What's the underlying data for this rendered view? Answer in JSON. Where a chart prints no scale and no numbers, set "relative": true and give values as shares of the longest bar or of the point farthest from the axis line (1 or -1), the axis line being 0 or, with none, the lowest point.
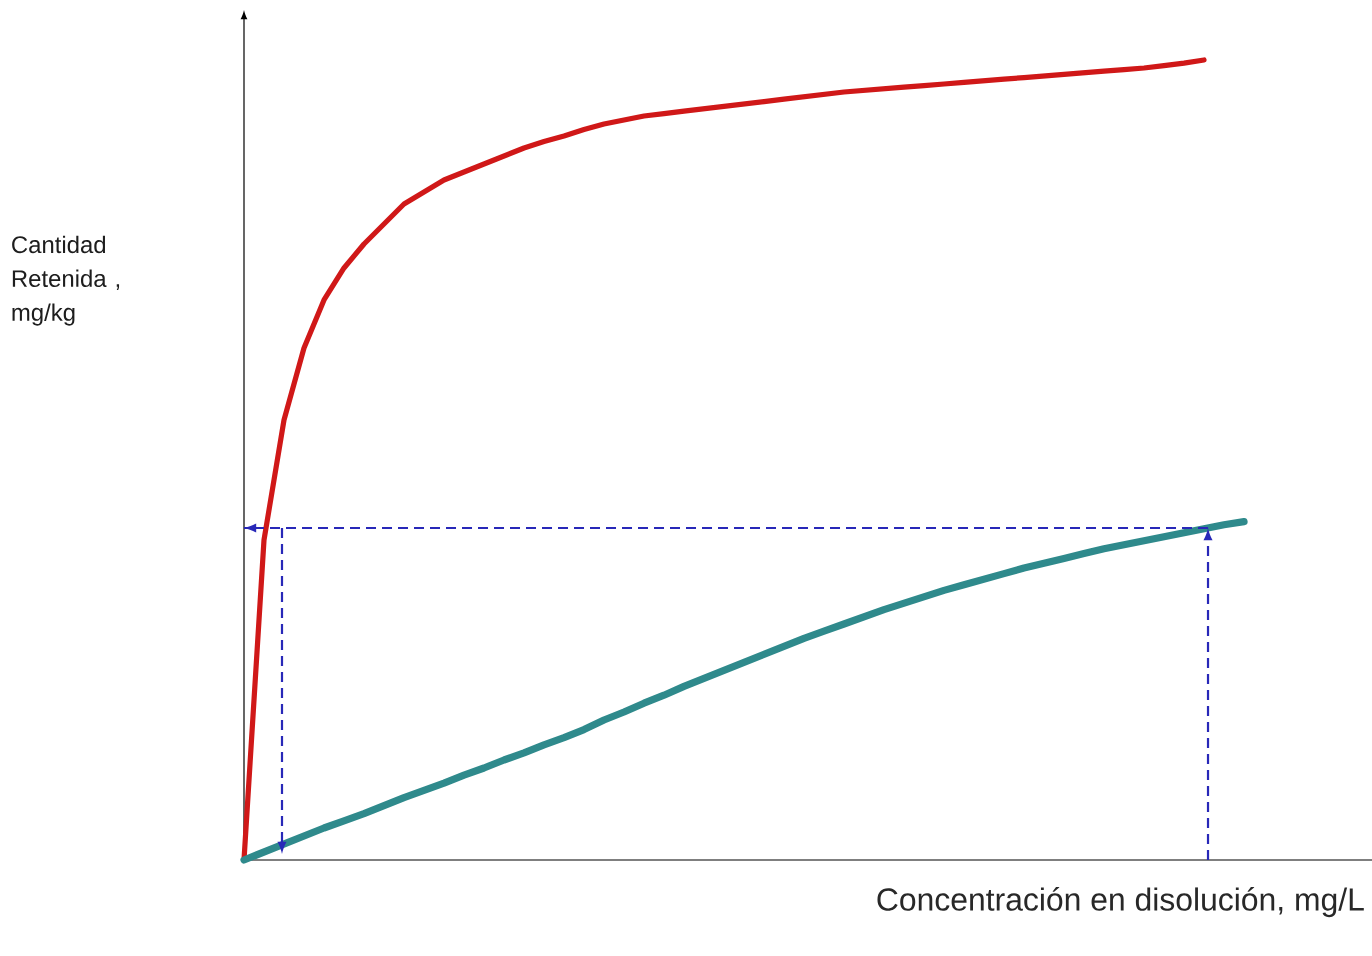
{
  "chart_data": {
    "type": "line",
    "relative": true,
    "xlabel": "Concentración en disolución, mg/L",
    "ylabel": "Cantidad Retenida , mg/kg",
    "categories": [
      null,
      null,
      null,
      null,
      null,
      null,
      null,
      null,
      null,
      null,
      null,
      null,
      null,
      null,
      null,
      null,
      null,
      null,
      null,
      null,
      null,
      null,
      null,
      null,
      null,
      null,
      null,
      null,
      null,
      null,
      null,
      null,
      null,
      null,
      null,
      null,
      null,
      null,
      null,
      null,
      null,
      null,
      null,
      null,
      null,
      null,
      null,
      null,
      null,
      null,
      null
    ],
    "series": [
      {
        "color": "#d01818",
        "values": [
          0,
          0.4,
          0.55,
          0.64,
          0.7,
          0.74,
          0.77,
          0.795,
          0.82,
          0.835,
          0.85,
          0.86,
          0.87,
          0.88,
          0.89,
          0.898,
          0.905,
          0.913,
          0.92,
          0.925,
          0.93,
          0.933,
          0.936,
          0.939,
          0.942,
          0.945,
          0.948,
          0.951,
          0.954,
          0.957,
          0.96,
          0.962,
          0.964,
          0.966,
          0.968,
          0.97,
          0.972,
          0.974,
          0.976,
          0.978,
          0.98,
          0.982,
          0.984,
          0.986,
          0.988,
          0.99,
          0.993,
          0.996,
          1.0,
          null,
          null
        ]
      },
      {
        "color": "#2f8a8c",
        "values": [
          0,
          0.01,
          0.02,
          0.03,
          0.04,
          0.049,
          0.058,
          0.068,
          0.078,
          0.087,
          0.096,
          0.106,
          0.115,
          0.125,
          0.134,
          0.144,
          0.153,
          0.163,
          0.175,
          0.185,
          0.196,
          0.206,
          0.217,
          0.227,
          0.237,
          0.247,
          0.257,
          0.267,
          0.277,
          0.286,
          0.295,
          0.304,
          0.313,
          0.321,
          0.329,
          0.337,
          0.344,
          0.351,
          0.358,
          0.365,
          0.371,
          0.377,
          0.383,
          0.389,
          0.394,
          0.399,
          0.404,
          0.409,
          0.414,
          0.419,
          0.423
        ]
      }
    ],
    "ref_lines": [
      {
        "axis": "y",
        "value": 0.415,
        "color": "#2828b8",
        "line_style": "dashed"
      }
    ]
  }
}
